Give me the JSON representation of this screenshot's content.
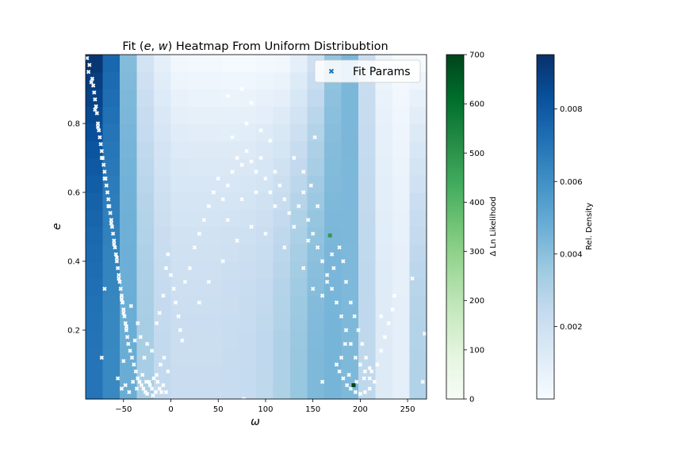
{
  "chart_data": {
    "type": "heatmap",
    "title": "Fit $(e, w)$ Heatmap From Uniform Distribubtion",
    "title_parts": {
      "prefix": "Fit (",
      "var_e": "e",
      "comma": ", ",
      "var_w": "w",
      "suffix": ") Heatmap From Uniform Distribubtion"
    },
    "xlabel": "ω",
    "ylabel": "e",
    "xlim": [
      -90,
      270
    ],
    "ylim": [
      0,
      1.0
    ],
    "xticks": [
      -50,
      0,
      50,
      100,
      150,
      200,
      250
    ],
    "yticks": [
      0.2,
      0.4,
      0.6,
      0.8
    ],
    "legend": {
      "label": "Fit Params",
      "placement": "upper right"
    },
    "heatmap": {
      "cmap": "Blues",
      "x_bins": 20,
      "y_bins": 20,
      "x_range": [
        -90,
        270
      ],
      "y_range": [
        0,
        1.0
      ],
      "column_base": [
        0.007,
        0.0063,
        0.0048,
        0.0033,
        0.0025,
        0.0022,
        0.0022,
        0.0022,
        0.0023,
        0.0024,
        0.0026,
        0.0031,
        0.0037,
        0.0043,
        0.0045,
        0.0043,
        0.0026,
        0.0012,
        0.0009,
        0.003
      ],
      "column_top": [
        0.0093,
        0.0075,
        0.0042,
        0.0018,
        0.0009,
        0.0003,
        0.0002,
        0.0002,
        0.0001,
        0.0001,
        0.0002,
        0.0003,
        0.0009,
        0.002,
        0.0038,
        0.0044,
        0.0022,
        0.0005,
        0.0001,
        0.0001
      ]
    },
    "colorbars": [
      {
        "label": "Δ Ln Likelihood",
        "cmap": "Greens",
        "min": 0,
        "max": 700,
        "ticks": [
          0,
          100,
          200,
          300,
          400,
          500,
          600,
          700
        ]
      },
      {
        "label": "Rel. Density",
        "cmap": "Blues",
        "min": 0,
        "max": 0.0095,
        "ticks": [
          0.002,
          0.004,
          0.006,
          0.008
        ]
      }
    ],
    "scatter_points": [
      [
        -88.5,
        0.99
      ],
      [
        -86,
        0.97
      ],
      [
        -87,
        0.95
      ],
      [
        -83,
        0.93
      ],
      [
        -82,
        0.91
      ],
      [
        -81,
        0.89
      ],
      [
        -80,
        0.87
      ],
      [
        -79,
        0.85
      ],
      [
        -78,
        0.83
      ],
      [
        -77,
        0.8
      ],
      [
        -76,
        0.78
      ],
      [
        -75,
        0.76
      ],
      [
        -74,
        0.74
      ],
      [
        -73,
        0.72
      ],
      [
        -72,
        0.7
      ],
      [
        -71,
        0.68
      ],
      [
        -70,
        0.66
      ],
      [
        -69,
        0.64
      ],
      [
        -68,
        0.62
      ],
      [
        -67,
        0.6
      ],
      [
        -66,
        0.58
      ],
      [
        -65,
        0.56
      ],
      [
        -64,
        0.54
      ],
      [
        -63,
        0.52
      ],
      [
        -62,
        0.5
      ],
      [
        -61,
        0.48
      ],
      [
        -60,
        0.46
      ],
      [
        -59,
        0.44
      ],
      [
        -58,
        0.42
      ],
      [
        -57,
        0.4
      ],
      [
        -56,
        0.38
      ],
      [
        -55,
        0.36
      ],
      [
        -54,
        0.34
      ],
      [
        -53,
        0.32
      ],
      [
        -52,
        0.3
      ],
      [
        -51,
        0.28
      ],
      [
        -50,
        0.26
      ],
      [
        -49,
        0.24
      ],
      [
        -48,
        0.22
      ],
      [
        -47,
        0.2
      ],
      [
        -46,
        0.18
      ],
      [
        -84,
        0.92
      ],
      [
        -80,
        0.84
      ],
      [
        -77,
        0.79
      ],
      [
        -73,
        0.7
      ],
      [
        -70,
        0.64
      ],
      [
        -66,
        0.56
      ],
      [
        -63,
        0.51
      ],
      [
        -60,
        0.45
      ],
      [
        -57,
        0.41
      ],
      [
        -55,
        0.35
      ],
      [
        -52,
        0.29
      ],
      [
        -50,
        0.25
      ],
      [
        -47,
        0.21
      ],
      [
        -45,
        0.16
      ],
      [
        -43,
        0.14
      ],
      [
        -41,
        0.12
      ],
      [
        -39,
        0.1
      ],
      [
        -37,
        0.08
      ],
      [
        -35,
        0.06
      ],
      [
        -33,
        0.05
      ],
      [
        -31,
        0.04
      ],
      [
        -29,
        0.03
      ],
      [
        -27,
        0.02
      ],
      [
        -25,
        0.015
      ],
      [
        -30,
        0.07
      ],
      [
        -26,
        0.05
      ],
      [
        -22,
        0.04
      ],
      [
        -20,
        0.03
      ],
      [
        -18,
        0.06
      ],
      [
        -16,
        0.02
      ],
      [
        -14,
        0.05
      ],
      [
        -12,
        0.03
      ],
      [
        -10,
        0.02
      ],
      [
        -8,
        0.04
      ],
      [
        -5,
        0.02
      ],
      [
        -36,
        0.03
      ],
      [
        -40,
        0.05
      ],
      [
        -44,
        0.02
      ],
      [
        -48,
        0.04
      ],
      [
        -52,
        0.03
      ],
      [
        -56,
        0.06
      ],
      [
        -70,
        0.32
      ],
      [
        -73,
        0.12
      ],
      [
        -50,
        0.11
      ],
      [
        -32,
        0.18
      ],
      [
        -25,
        0.16
      ],
      [
        -20,
        0.14
      ],
      [
        -12,
        0.25
      ],
      [
        -15,
        0.22
      ],
      [
        -8,
        0.3
      ],
      [
        -5,
        0.38
      ],
      [
        -3,
        0.42
      ],
      [
        0,
        0.36
      ],
      [
        3,
        0.32
      ],
      [
        5,
        0.28
      ],
      [
        8,
        0.24
      ],
      [
        10,
        0.2
      ],
      [
        12,
        0.17
      ],
      [
        15,
        0.34
      ],
      [
        20,
        0.38
      ],
      [
        25,
        0.44
      ],
      [
        30,
        0.48
      ],
      [
        35,
        0.52
      ],
      [
        40,
        0.56
      ],
      [
        45,
        0.6
      ],
      [
        50,
        0.64
      ],
      [
        55,
        0.58
      ],
      [
        60,
        0.62
      ],
      [
        65,
        0.66
      ],
      [
        70,
        0.7
      ],
      [
        75,
        0.68
      ],
      [
        80,
        0.72
      ],
      [
        85,
        0.69
      ],
      [
        90,
        0.66
      ],
      [
        95,
        0.7
      ],
      [
        100,
        0.64
      ],
      [
        105,
        0.6
      ],
      [
        110,
        0.56
      ],
      [
        115,
        0.62
      ],
      [
        120,
        0.58
      ],
      [
        125,
        0.54
      ],
      [
        130,
        0.5
      ],
      [
        135,
        0.56
      ],
      [
        140,
        0.6
      ],
      [
        145,
        0.52
      ],
      [
        150,
        0.48
      ],
      [
        155,
        0.44
      ],
      [
        160,
        0.4
      ],
      [
        165,
        0.36
      ],
      [
        170,
        0.32
      ],
      [
        175,
        0.28
      ],
      [
        180,
        0.24
      ],
      [
        185,
        0.2
      ],
      [
        190,
        0.16
      ],
      [
        195,
        0.12
      ],
      [
        200,
        0.1
      ],
      [
        205,
        0.08
      ],
      [
        210,
        0.06
      ],
      [
        215,
        0.05
      ],
      [
        30,
        0.28
      ],
      [
        40,
        0.34
      ],
      [
        55,
        0.4
      ],
      [
        70,
        0.46
      ],
      [
        85,
        0.5
      ],
      [
        100,
        0.48
      ],
      [
        120,
        0.44
      ],
      [
        140,
        0.38
      ],
      [
        60,
        0.52
      ],
      [
        75,
        0.58
      ],
      [
        90,
        0.6
      ],
      [
        110,
        0.66
      ],
      [
        130,
        0.7
      ],
      [
        65,
        0.76
      ],
      [
        80,
        0.8
      ],
      [
        95,
        0.78
      ],
      [
        105,
        0.75
      ],
      [
        85,
        0.86
      ],
      [
        75,
        0.9
      ],
      [
        60,
        0.88
      ],
      [
        175,
        0.1
      ],
      [
        178,
        0.08
      ],
      [
        182,
        0.06
      ],
      [
        186,
        0.04
      ],
      [
        190,
        0.03
      ],
      [
        195,
        0.02
      ],
      [
        200,
        0.015
      ],
      [
        205,
        0.02
      ],
      [
        210,
        0.03
      ],
      [
        188,
        0.07
      ],
      [
        196,
        0.05
      ],
      [
        204,
        0.06
      ],
      [
        212,
        0.08
      ],
      [
        218,
        0.1
      ],
      [
        222,
        0.14
      ],
      [
        226,
        0.18
      ],
      [
        230,
        0.22
      ],
      [
        234,
        0.26
      ],
      [
        236,
        0.3
      ],
      [
        222,
        0.24
      ],
      [
        160,
        0.3
      ],
      [
        165,
        0.34
      ],
      [
        170,
        0.42
      ],
      [
        172,
        0.38
      ],
      [
        178,
        0.44
      ],
      [
        182,
        0.4
      ],
      [
        185,
        0.34
      ],
      [
        190,
        0.28
      ],
      [
        194,
        0.24
      ],
      [
        198,
        0.2
      ],
      [
        202,
        0.16
      ],
      [
        206,
        0.12
      ],
      [
        210,
        0.09
      ],
      [
        180,
        0.12
      ],
      [
        184,
        0.16
      ],
      [
        160,
        0.05
      ],
      [
        150,
        0.32
      ],
      [
        145,
        0.46
      ],
      [
        155,
        0.56
      ],
      [
        148,
        0.62
      ],
      [
        -23,
        0.05
      ],
      [
        -19,
        0.01
      ],
      [
        -15,
        0.07
      ],
      [
        -11,
        0.1
      ],
      [
        -7,
        0.12
      ],
      [
        -3,
        0.08
      ],
      [
        -38,
        0.17
      ],
      [
        -35,
        0.22
      ],
      [
        -42,
        0.27
      ],
      [
        -28,
        0.12
      ],
      [
        255,
        0.35
      ],
      [
        268,
        0.19
      ],
      [
        266,
        0.05
      ],
      [
        77,
        0.0
      ],
      [
        140,
        0.66
      ],
      [
        152,
        0.76
      ]
    ],
    "green_markers": [
      {
        "x": 193,
        "y": 0.04,
        "value": 700
      },
      {
        "x": 168,
        "y": 0.475,
        "value": 480
      }
    ]
  }
}
